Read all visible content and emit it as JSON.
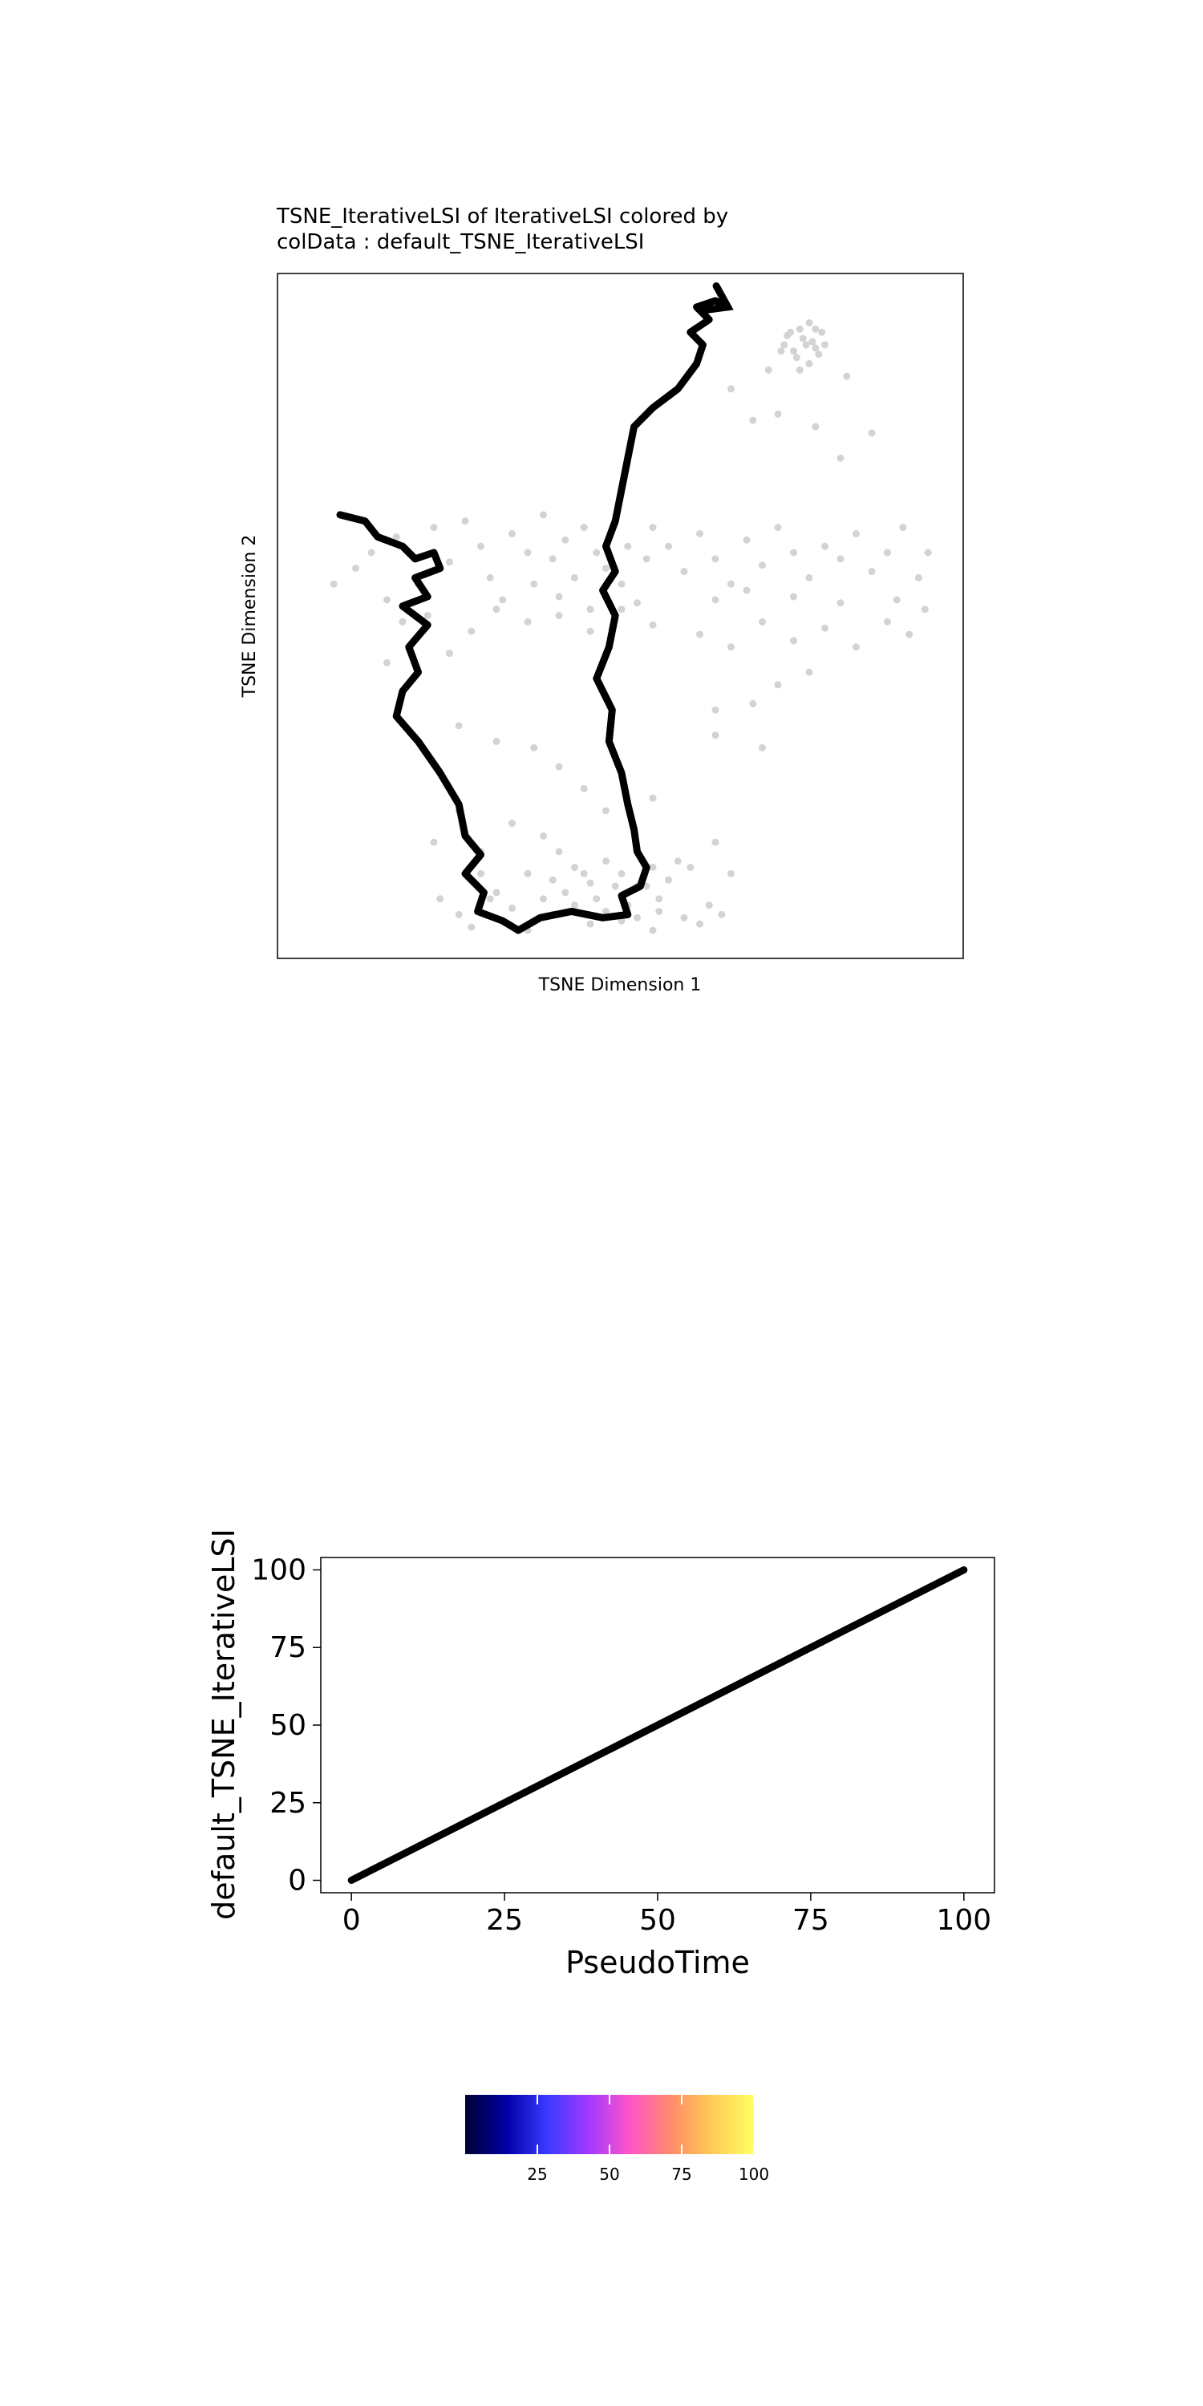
{
  "chart_data": [
    {
      "type": "scatter",
      "title_line1": "TSNE_IterativeLSI of IterativeLSI  colored by",
      "title_line2": "colData :  default_TSNE_IterativeLSI",
      "xlabel": "TSNE Dimension 1",
      "ylabel": "TSNE Dimension 2",
      "xlim": [
        -1,
        1
      ],
      "ylim": [
        -1,
        1
      ],
      "grid": false,
      "point_color": "#d3d3d3",
      "trajectory_color": "#000000",
      "points": [
        [
          0.57,
          0.91
        ],
        [
          0.6,
          0.93
        ],
        [
          0.53,
          0.89
        ],
        [
          0.61,
          0.87
        ],
        [
          0.55,
          0.84
        ],
        [
          0.62,
          0.85
        ],
        [
          0.58,
          0.88
        ],
        [
          0.52,
          0.86
        ],
        [
          0.64,
          0.9
        ],
        [
          0.56,
          0.82
        ],
        [
          0.6,
          0.8
        ],
        [
          0.54,
          0.9
        ],
        [
          0.63,
          0.83
        ],
        [
          0.59,
          0.86
        ],
        [
          0.51,
          0.84
        ],
        [
          0.65,
          0.86
        ],
        [
          0.57,
          0.78
        ],
        [
          0.62,
          0.91
        ],
        [
          0.47,
          0.78
        ],
        [
          0.42,
          0.62
        ],
        [
          0.5,
          0.64
        ],
        [
          0.35,
          0.72
        ],
        [
          0.72,
          0.76
        ],
        [
          0.8,
          0.58
        ],
        [
          0.7,
          0.5
        ],
        [
          0.62,
          0.6
        ],
        [
          -0.8,
          0.2
        ],
        [
          -0.72,
          0.25
        ],
        [
          -0.65,
          0.1
        ],
        [
          -0.6,
          0.28
        ],
        [
          -0.55,
          0.17
        ],
        [
          -0.5,
          0.3
        ],
        [
          -0.45,
          0.22
        ],
        [
          -0.42,
          0.12
        ],
        [
          -0.38,
          0.05
        ],
        [
          -0.35,
          0.26
        ],
        [
          -0.3,
          0.2
        ],
        [
          -0.28,
          0.1
        ],
        [
          -0.25,
          0.32
        ],
        [
          -0.22,
          0.18
        ],
        [
          -0.2,
          0.06
        ],
        [
          -0.18,
          0.24
        ],
        [
          -0.15,
          0.12
        ],
        [
          -0.12,
          0.28
        ],
        [
          -0.1,
          0.02
        ],
        [
          -0.08,
          0.2
        ],
        [
          -0.05,
          0.15
        ],
        [
          -0.02,
          0.3
        ],
        [
          0.0,
          0.1
        ],
        [
          0.02,
          0.22
        ],
        [
          0.05,
          0.04
        ],
        [
          0.08,
          0.18
        ],
        [
          0.1,
          0.28
        ],
        [
          0.15,
          0.22
        ],
        [
          0.2,
          0.14
        ],
        [
          0.25,
          0.26
        ],
        [
          0.3,
          0.18
        ],
        [
          0.35,
          0.1
        ],
        [
          0.4,
          0.24
        ],
        [
          0.45,
          0.16
        ],
        [
          0.5,
          0.28
        ],
        [
          0.55,
          0.2
        ],
        [
          0.6,
          0.12
        ],
        [
          0.65,
          0.22
        ],
        [
          0.7,
          0.18
        ],
        [
          0.75,
          0.26
        ],
        [
          0.8,
          0.14
        ],
        [
          0.85,
          0.2
        ],
        [
          0.9,
          0.28
        ],
        [
          0.95,
          0.12
        ],
        [
          0.98,
          0.2
        ],
        [
          0.3,
          0.05
        ],
        [
          0.4,
          0.08
        ],
        [
          0.55,
          0.06
        ],
        [
          0.7,
          0.04
        ],
        [
          0.88,
          0.05
        ],
        [
          -0.92,
          0.1
        ],
        [
          -0.85,
          0.15
        ],
        [
          -0.75,
          0.05
        ],
        [
          -0.7,
          -0.02
        ],
        [
          -0.62,
          0.0
        ],
        [
          -0.55,
          -0.12
        ],
        [
          -0.48,
          -0.05
        ],
        [
          -0.4,
          0.02
        ],
        [
          -0.3,
          -0.02
        ],
        [
          -0.2,
          0.0
        ],
        [
          -0.1,
          -0.05
        ],
        [
          0.0,
          0.02
        ],
        [
          0.1,
          -0.03
        ],
        [
          0.25,
          -0.06
        ],
        [
          0.35,
          -0.1
        ],
        [
          0.45,
          -0.02
        ],
        [
          0.55,
          -0.08
        ],
        [
          0.65,
          -0.04
        ],
        [
          0.75,
          -0.1
        ],
        [
          0.85,
          -0.02
        ],
        [
          0.92,
          -0.06
        ],
        [
          0.97,
          0.02
        ],
        [
          0.6,
          -0.18
        ],
        [
          0.5,
          -0.22
        ],
        [
          0.42,
          -0.28
        ],
        [
          0.3,
          -0.3
        ],
        [
          -0.75,
          -0.15
        ],
        [
          -0.52,
          -0.35
        ],
        [
          -0.4,
          -0.4
        ],
        [
          -0.28,
          -0.42
        ],
        [
          -0.2,
          -0.48
        ],
        [
          -0.12,
          -0.55
        ],
        [
          -0.05,
          -0.62
        ],
        [
          0.1,
          -0.58
        ],
        [
          0.3,
          -0.38
        ],
        [
          0.45,
          -0.42
        ],
        [
          -0.6,
          -0.72
        ],
        [
          -0.52,
          -0.62
        ],
        [
          -0.45,
          -0.75
        ],
        [
          -0.35,
          -0.66
        ],
        [
          -0.3,
          -0.82
        ],
        [
          -0.25,
          -0.7
        ],
        [
          -0.2,
          -0.75
        ],
        [
          -0.15,
          -0.8
        ],
        [
          -0.1,
          -0.85
        ],
        [
          -0.05,
          -0.78
        ],
        [
          0.0,
          -0.82
        ],
        [
          0.05,
          -0.86
        ],
        [
          0.1,
          -0.8
        ],
        [
          0.15,
          -0.84
        ],
        [
          -0.22,
          -0.84
        ],
        [
          -0.18,
          -0.88
        ],
        [
          -0.12,
          -0.82
        ],
        [
          -0.08,
          -0.9
        ],
        [
          -0.02,
          -0.86
        ],
        [
          0.02,
          -0.92
        ],
        [
          0.08,
          -0.86
        ],
        [
          0.12,
          -0.9
        ],
        [
          -0.15,
          -0.92
        ],
        [
          -0.05,
          -0.94
        ],
        [
          0.05,
          -0.96
        ],
        [
          -0.25,
          -0.9
        ],
        [
          -0.45,
          -0.82
        ],
        [
          -0.4,
          -0.88
        ],
        [
          0.22,
          -0.8
        ],
        [
          0.3,
          -0.72
        ],
        [
          0.18,
          -0.78
        ],
        [
          0.35,
          -0.82
        ],
        [
          -0.52,
          -0.95
        ],
        [
          -0.42,
          -0.9
        ],
        [
          -0.35,
          -0.93
        ],
        [
          -0.22,
          -0.95
        ],
        [
          -0.1,
          -0.98
        ],
        [
          0.0,
          -0.97
        ],
        [
          0.1,
          -1.0
        ],
        [
          0.2,
          -0.96
        ],
        [
          0.28,
          -0.92
        ],
        [
          -0.58,
          -0.9
        ],
        [
          -0.48,
          -0.99
        ],
        [
          -0.38,
          -0.97
        ],
        [
          -0.3,
          -1.0
        ],
        [
          0.12,
          -0.94
        ],
        [
          0.25,
          -0.98
        ],
        [
          0.32,
          -0.95
        ]
      ],
      "trajectory": [
        [
          -0.9,
          0.32
        ],
        [
          -0.82,
          0.3
        ],
        [
          -0.78,
          0.25
        ],
        [
          -0.7,
          0.22
        ],
        [
          -0.66,
          0.18
        ],
        [
          -0.6,
          0.2
        ],
        [
          -0.58,
          0.15
        ],
        [
          -0.66,
          0.12
        ],
        [
          -0.62,
          0.06
        ],
        [
          -0.7,
          0.03
        ],
        [
          -0.62,
          -0.03
        ],
        [
          -0.68,
          -0.1
        ],
        [
          -0.65,
          -0.18
        ],
        [
          -0.7,
          -0.24
        ],
        [
          -0.72,
          -0.32
        ],
        [
          -0.65,
          -0.4
        ],
        [
          -0.58,
          -0.5
        ],
        [
          -0.52,
          -0.6
        ],
        [
          -0.5,
          -0.7
        ],
        [
          -0.45,
          -0.76
        ],
        [
          -0.5,
          -0.82
        ],
        [
          -0.44,
          -0.88
        ],
        [
          -0.46,
          -0.94
        ],
        [
          -0.38,
          -0.97
        ],
        [
          -0.33,
          -1.0
        ],
        [
          -0.26,
          -0.96
        ],
        [
          -0.16,
          -0.94
        ],
        [
          -0.06,
          -0.96
        ],
        [
          0.02,
          -0.95
        ],
        [
          0.0,
          -0.89
        ],
        [
          0.06,
          -0.86
        ],
        [
          0.08,
          -0.8
        ],
        [
          0.05,
          -0.75
        ],
        [
          0.04,
          -0.68
        ],
        [
          0.02,
          -0.6
        ],
        [
          0.0,
          -0.5
        ],
        [
          -0.04,
          -0.4
        ],
        [
          -0.03,
          -0.3
        ],
        [
          -0.08,
          -0.2
        ],
        [
          -0.04,
          -0.1
        ],
        [
          -0.02,
          0.0
        ],
        [
          -0.06,
          0.08
        ],
        [
          -0.02,
          0.14
        ],
        [
          -0.05,
          0.22
        ],
        [
          -0.02,
          0.3
        ],
        [
          0.0,
          0.4
        ],
        [
          0.02,
          0.5
        ],
        [
          0.04,
          0.6
        ],
        [
          0.1,
          0.66
        ],
        [
          0.18,
          0.72
        ],
        [
          0.24,
          0.8
        ],
        [
          0.26,
          0.86
        ],
        [
          0.22,
          0.9
        ],
        [
          0.28,
          0.94
        ],
        [
          0.24,
          0.98
        ],
        [
          0.3,
          1.0
        ],
        [
          0.34,
          0.98
        ]
      ]
    },
    {
      "type": "line",
      "xlabel": "PseudoTime",
      "ylabel": "default_TSNE_IterativeLSI",
      "xlim": [
        -5,
        105
      ],
      "ylim": [
        -4,
        104
      ],
      "xticks": [
        0,
        25,
        50,
        75,
        100
      ],
      "yticks": [
        0,
        25,
        50,
        75,
        100
      ],
      "x": [
        0,
        100
      ],
      "y": [
        0,
        100
      ],
      "line_color": "#000000"
    },
    {
      "type": "colorbar",
      "range": [
        0,
        100
      ],
      "ticks": [
        25,
        50,
        75,
        100
      ],
      "colors": [
        "#000033",
        "#0000a8",
        "#3b3bff",
        "#a239ff",
        "#ff55c8",
        "#ff8c69",
        "#ffcc55",
        "#ffff60"
      ]
    }
  ]
}
